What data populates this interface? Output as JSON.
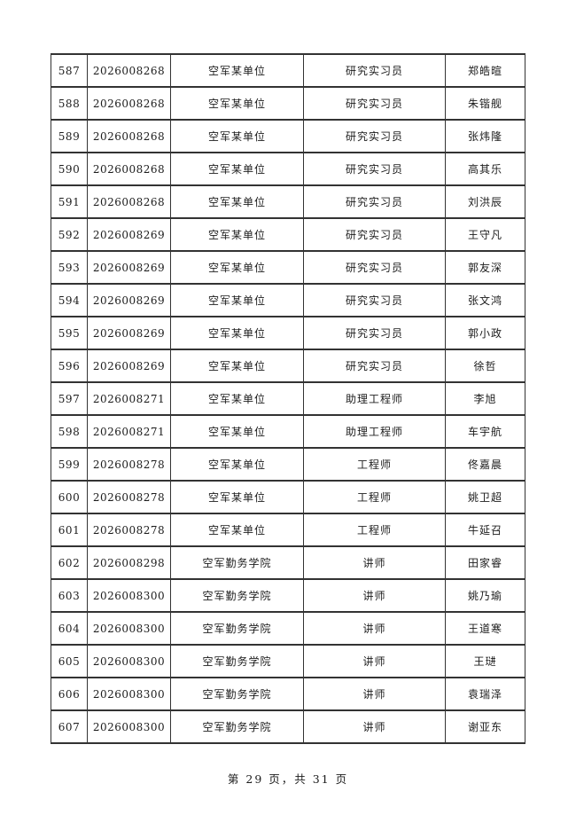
{
  "document": {
    "footer_text": "第 29 页，共 31 页"
  },
  "table": {
    "rows": [
      {
        "seq": "587",
        "code": "2026008268",
        "unit": "空军某单位",
        "position": "研究实习员",
        "name": "郑皓暄"
      },
      {
        "seq": "588",
        "code": "2026008268",
        "unit": "空军某单位",
        "position": "研究实习员",
        "name": "朱锴舰"
      },
      {
        "seq": "589",
        "code": "2026008268",
        "unit": "空军某单位",
        "position": "研究实习员",
        "name": "张炜隆"
      },
      {
        "seq": "590",
        "code": "2026008268",
        "unit": "空军某单位",
        "position": "研究实习员",
        "name": "高其乐"
      },
      {
        "seq": "591",
        "code": "2026008268",
        "unit": "空军某单位",
        "position": "研究实习员",
        "name": "刘洪辰"
      },
      {
        "seq": "592",
        "code": "2026008269",
        "unit": "空军某单位",
        "position": "研究实习员",
        "name": "王守凡"
      },
      {
        "seq": "593",
        "code": "2026008269",
        "unit": "空军某单位",
        "position": "研究实习员",
        "name": "郭友深"
      },
      {
        "seq": "594",
        "code": "2026008269",
        "unit": "空军某单位",
        "position": "研究实习员",
        "name": "张文鸿"
      },
      {
        "seq": "595",
        "code": "2026008269",
        "unit": "空军某单位",
        "position": "研究实习员",
        "name": "郭小政"
      },
      {
        "seq": "596",
        "code": "2026008269",
        "unit": "空军某单位",
        "position": "研究实习员",
        "name": "徐哲"
      },
      {
        "seq": "597",
        "code": "2026008271",
        "unit": "空军某单位",
        "position": "助理工程师",
        "name": "李旭"
      },
      {
        "seq": "598",
        "code": "2026008271",
        "unit": "空军某单位",
        "position": "助理工程师",
        "name": "车宇航"
      },
      {
        "seq": "599",
        "code": "2026008278",
        "unit": "空军某单位",
        "position": "工程师",
        "name": "佟嘉晨"
      },
      {
        "seq": "600",
        "code": "2026008278",
        "unit": "空军某单位",
        "position": "工程师",
        "name": "姚卫超"
      },
      {
        "seq": "601",
        "code": "2026008278",
        "unit": "空军某单位",
        "position": "工程师",
        "name": "牛延召"
      },
      {
        "seq": "602",
        "code": "2026008298",
        "unit": "空军勤务学院",
        "position": "讲师",
        "name": "田家睿"
      },
      {
        "seq": "603",
        "code": "2026008300",
        "unit": "空军勤务学院",
        "position": "讲师",
        "name": "姚乃瑜"
      },
      {
        "seq": "604",
        "code": "2026008300",
        "unit": "空军勤务学院",
        "position": "讲师",
        "name": "王道寒"
      },
      {
        "seq": "605",
        "code": "2026008300",
        "unit": "空军勤务学院",
        "position": "讲师",
        "name": "王琎"
      },
      {
        "seq": "606",
        "code": "2026008300",
        "unit": "空军勤务学院",
        "position": "讲师",
        "name": "袁瑞泽"
      },
      {
        "seq": "607",
        "code": "2026008300",
        "unit": "空军勤务学院",
        "position": "讲师",
        "name": "谢亚东"
      }
    ]
  }
}
